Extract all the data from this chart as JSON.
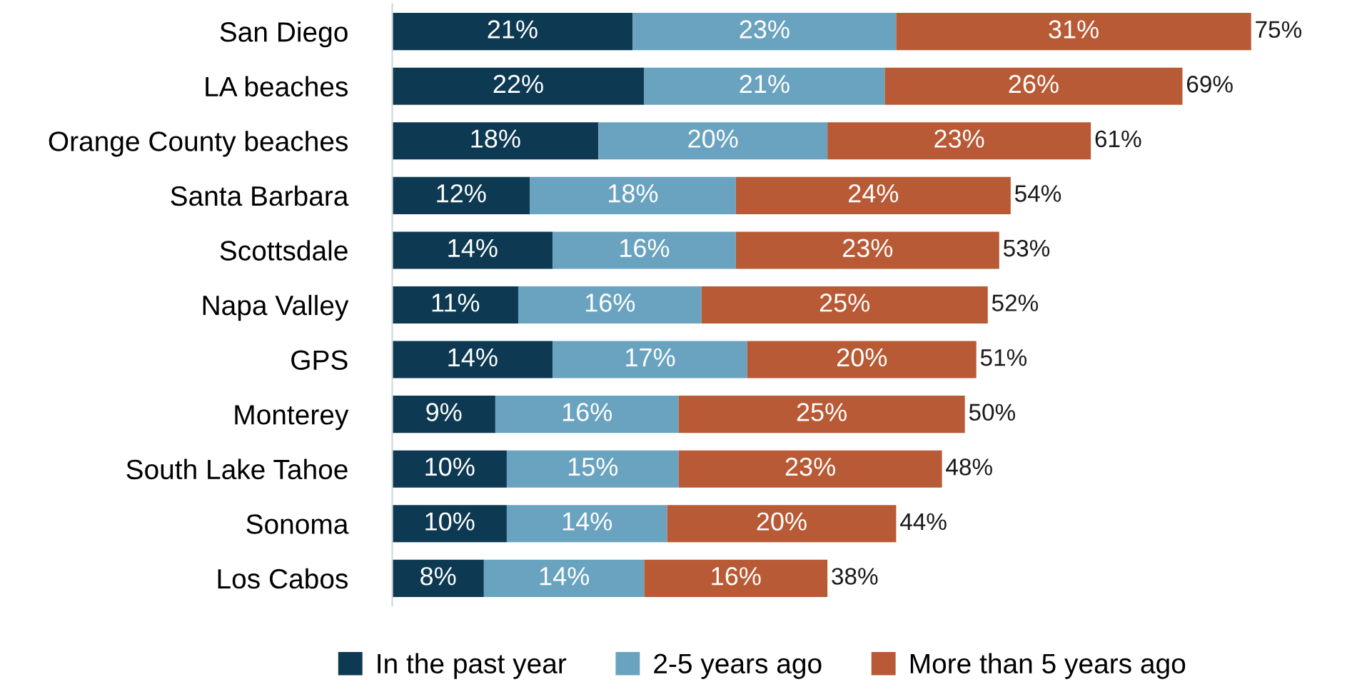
{
  "chart_data": {
    "type": "bar",
    "orientation": "horizontal",
    "stacked": true,
    "legend": "bottom",
    "grid": false,
    "categories": [
      "San Diego",
      "LA beaches",
      "Orange County beaches",
      "Santa Barbara",
      "Scottsdale",
      "Napa Valley",
      "GPS",
      "Monterey",
      "South Lake Tahoe",
      "Sonoma",
      "Los Cabos"
    ],
    "series": [
      {
        "name": "In the past year",
        "color": "#0d3a52",
        "values": [
          21,
          22,
          18,
          12,
          14,
          11,
          14,
          9,
          10,
          10,
          8
        ],
        "value_labels": [
          "21%",
          "22%",
          "18%",
          "12%",
          "14%",
          "11%",
          "14%",
          "9%",
          "10%",
          "10%",
          "8%"
        ]
      },
      {
        "name": "2-5 years ago",
        "color": "#6aa3bf",
        "values": [
          23,
          21,
          20,
          18,
          16,
          16,
          17,
          16,
          15,
          14,
          14
        ],
        "value_labels": [
          "23%",
          "21%",
          "20%",
          "18%",
          "16%",
          "16%",
          "17%",
          "16%",
          "15%",
          "14%",
          "14%"
        ]
      },
      {
        "name": "More than 5 years ago",
        "color": "#b85a35",
        "values": [
          31,
          26,
          23,
          24,
          23,
          25,
          20,
          25,
          23,
          20,
          16
        ],
        "value_labels": [
          "31%",
          "26%",
          "23%",
          "24%",
          "23%",
          "25%",
          "20%",
          "25%",
          "23%",
          "20%",
          "16%"
        ]
      }
    ],
    "totals": [
      "75%",
      "69%",
      "61%",
      "54%",
      "53%",
      "52%",
      "51%",
      "50%",
      "48%",
      "44%",
      "38%"
    ]
  }
}
